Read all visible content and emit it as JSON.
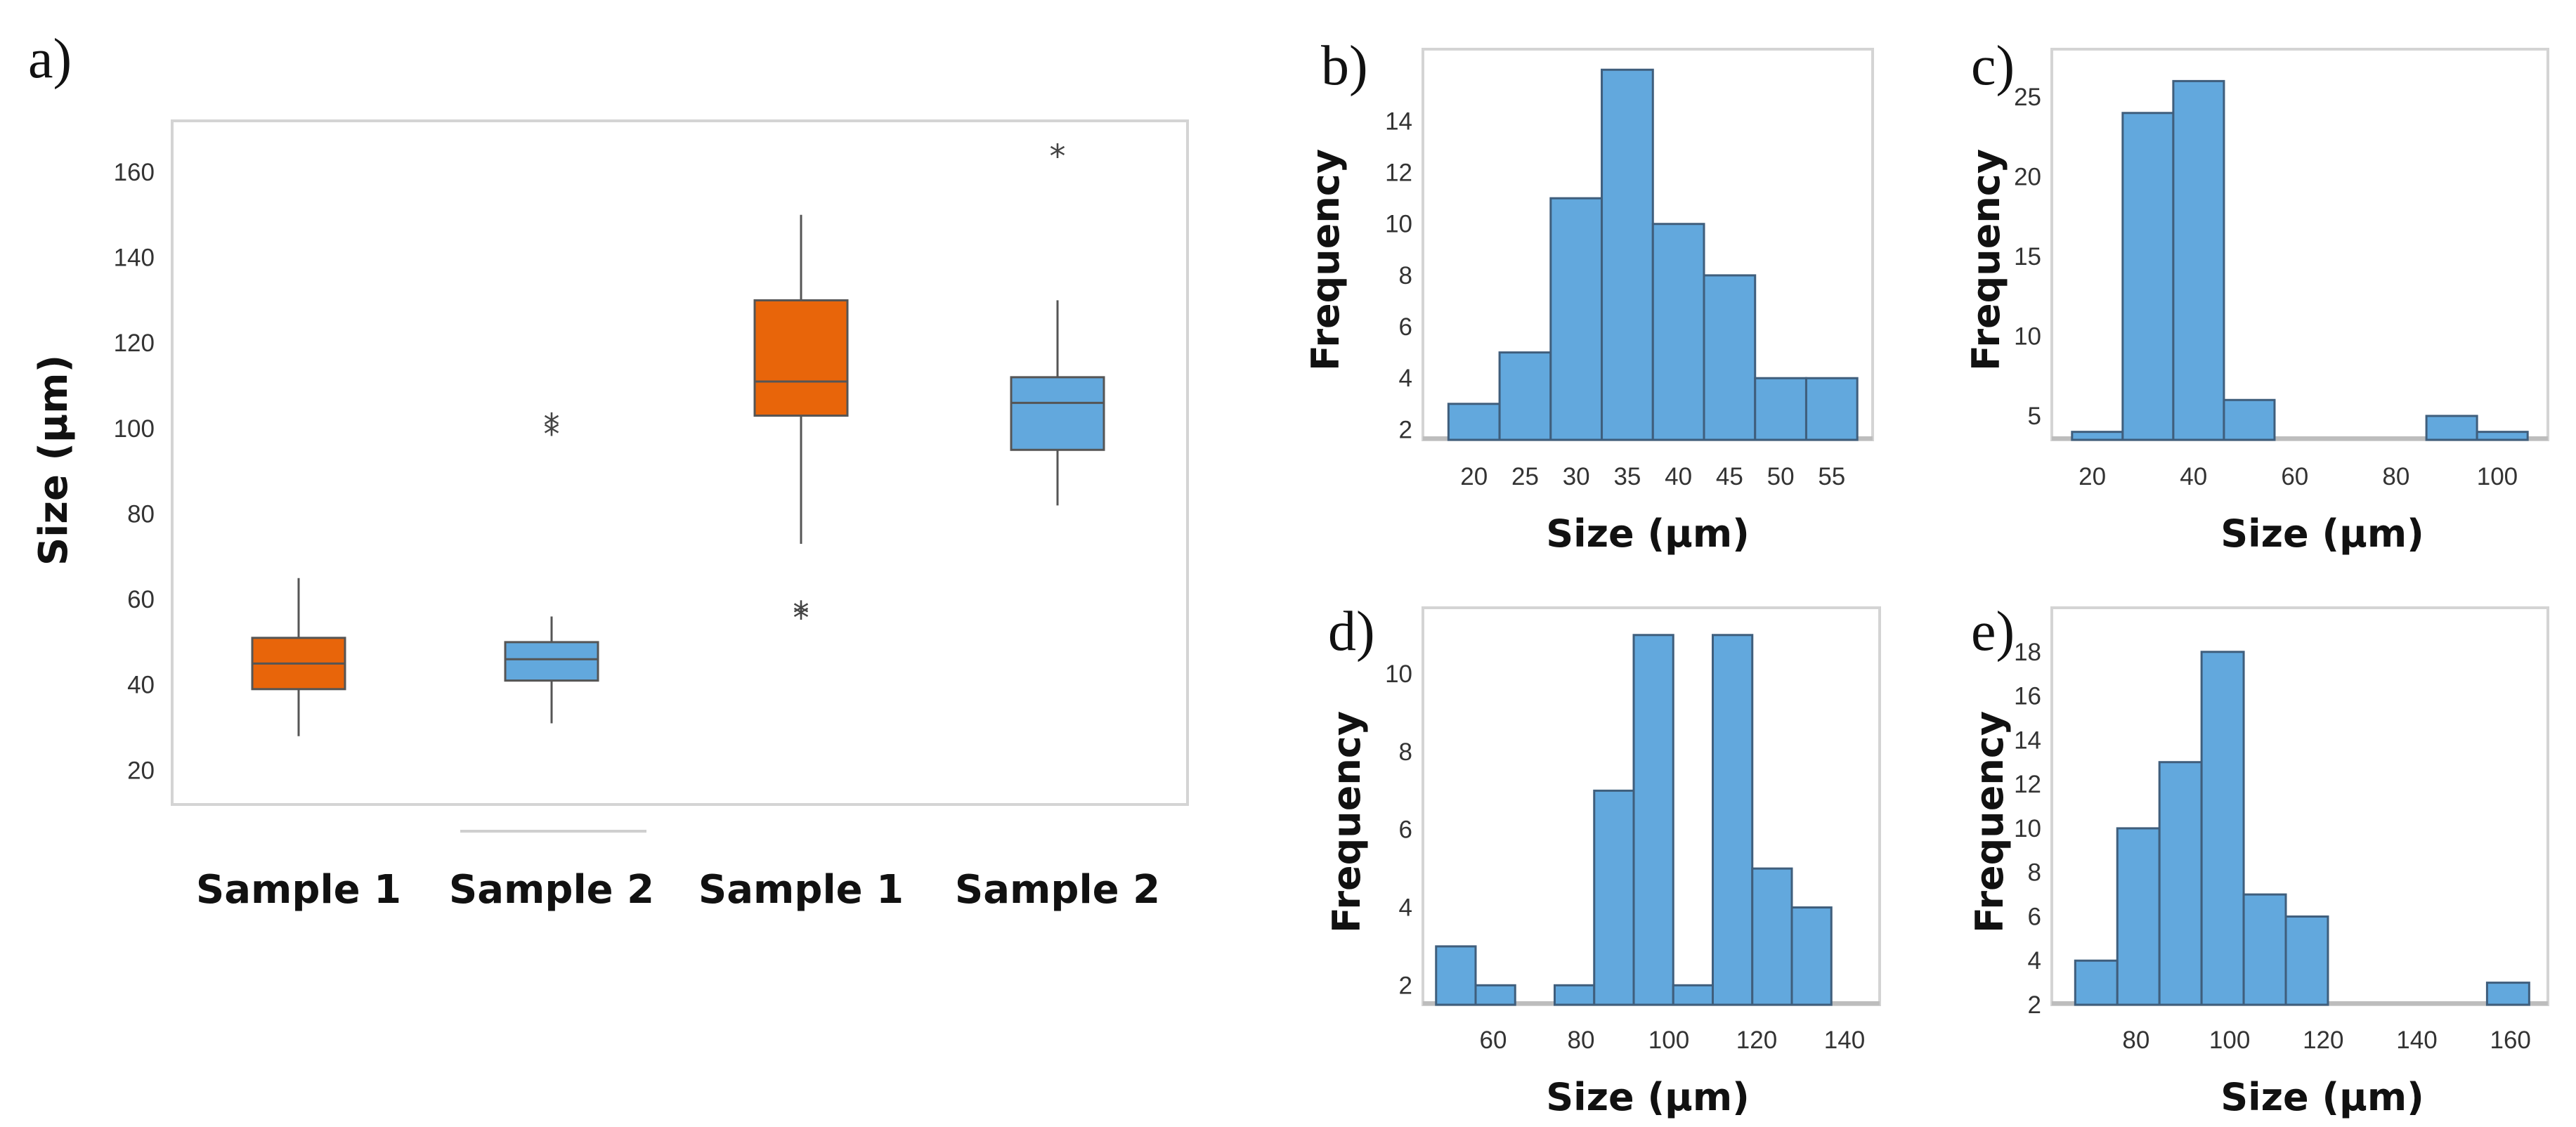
{
  "colors": {
    "orange": "#E8650A",
    "blue": "#62A8DD",
    "bar_stroke": "#3F5E7C",
    "frame": "#D4D4D4",
    "whisker": "#555555"
  },
  "chart_data": [
    {
      "id": "a",
      "panel_label": "a)",
      "type": "box",
      "title": "",
      "xlabel": "",
      "ylabel": "Size (µm)",
      "ylim": [
        12,
        172
      ],
      "yticks": [
        "20",
        "40",
        "60",
        "80",
        "100",
        "120",
        "140",
        "160"
      ],
      "grid": false,
      "categories": [
        "Sample 1",
        "Sample 2",
        "Sample 1",
        "Sample 2"
      ],
      "boxes": [
        {
          "category": "Sample 1",
          "color": "orange",
          "whisker_low": 28,
          "q1": 39,
          "median": 45,
          "q3": 51,
          "whisker_high": 65,
          "outliers": []
        },
        {
          "category": "Sample 2",
          "color": "blue",
          "whisker_low": 31,
          "q1": 41,
          "median": 46,
          "q3": 50,
          "whisker_high": 56,
          "outliers": [
            101,
            103
          ]
        },
        {
          "category": "Sample 1",
          "color": "orange",
          "whisker_low": 73,
          "q1": 103,
          "median": 111,
          "q3": 130,
          "whisker_high": 150,
          "outliers": [
            58,
            59
          ]
        },
        {
          "category": "Sample 2",
          "color": "blue",
          "whisker_low": 82,
          "q1": 95,
          "median": 106,
          "q3": 112,
          "whisker_high": 130,
          "outliers": [
            166
          ]
        }
      ]
    },
    {
      "id": "b",
      "panel_label": "b)",
      "type": "histogram",
      "title": "",
      "xlabel": "Size (µm)",
      "ylabel": "Frequency",
      "xlim": [
        15,
        59
      ],
      "ylim": [
        1.6,
        16.8
      ],
      "xticks": [
        "20",
        "25",
        "30",
        "35",
        "40",
        "45",
        "50",
        "55"
      ],
      "yticks": [
        "2",
        "4",
        "6",
        "8",
        "10",
        "12",
        "14"
      ],
      "grid": false,
      "bins": [
        {
          "x0": 17.5,
          "x1": 22.5,
          "value": 3
        },
        {
          "x0": 22.5,
          "x1": 27.5,
          "value": 5
        },
        {
          "x0": 27.5,
          "x1": 32.5,
          "value": 11
        },
        {
          "x0": 32.5,
          "x1": 37.5,
          "value": 16
        },
        {
          "x0": 37.5,
          "x1": 42.5,
          "value": 10
        },
        {
          "x0": 42.5,
          "x1": 47.5,
          "value": 8
        },
        {
          "x0": 47.5,
          "x1": 52.5,
          "value": 4
        },
        {
          "x0": 52.5,
          "x1": 57.5,
          "value": 4
        }
      ]
    },
    {
      "id": "c",
      "panel_label": "c)",
      "type": "histogram",
      "title": "",
      "xlabel": "Size (µm)",
      "ylabel": "Frequency",
      "xlim": [
        12,
        110
      ],
      "ylim": [
        3.5,
        28
      ],
      "xticks": [
        "20",
        "40",
        "60",
        "80",
        "100"
      ],
      "yticks": [
        "5",
        "10",
        "15",
        "20",
        "25"
      ],
      "grid": false,
      "bins": [
        {
          "x0": 16,
          "x1": 26,
          "value": 4
        },
        {
          "x0": 26,
          "x1": 36,
          "value": 24
        },
        {
          "x0": 36,
          "x1": 46,
          "value": 26
        },
        {
          "x0": 46,
          "x1": 56,
          "value": 6
        },
        {
          "x0": 86,
          "x1": 96,
          "value": 5
        },
        {
          "x0": 96,
          "x1": 106,
          "value": 4
        }
      ]
    },
    {
      "id": "d",
      "panel_label": "d)",
      "type": "histogram",
      "title": "",
      "xlabel": "Size (µm)",
      "ylabel": "Frequency",
      "xlim": [
        44,
        148
      ],
      "ylim": [
        1.5,
        11.7
      ],
      "xticks": [
        "60",
        "80",
        "100",
        "120",
        "140"
      ],
      "yticks": [
        "2",
        "4",
        "6",
        "8",
        "10"
      ],
      "grid": false,
      "bins": [
        {
          "x0": 47,
          "x1": 56,
          "value": 3
        },
        {
          "x0": 56,
          "x1": 65,
          "value": 2
        },
        {
          "x0": 74,
          "x1": 83,
          "value": 2
        },
        {
          "x0": 83,
          "x1": 92,
          "value": 7
        },
        {
          "x0": 92,
          "x1": 101,
          "value": 11
        },
        {
          "x0": 101,
          "x1": 110,
          "value": 2
        },
        {
          "x0": 110,
          "x1": 119,
          "value": 11
        },
        {
          "x0": 119,
          "x1": 128,
          "value": 5
        },
        {
          "x0": 128,
          "x1": 137,
          "value": 4
        }
      ]
    },
    {
      "id": "e",
      "panel_label": "e)",
      "type": "histogram",
      "title": "",
      "xlabel": "Size (µm)",
      "ylabel": "Frequency",
      "xlim": [
        62,
        168
      ],
      "ylim": [
        2,
        20
      ],
      "xticks": [
        "80",
        "100",
        "120",
        "140",
        "160"
      ],
      "yticks": [
        "2",
        "4",
        "6",
        "8",
        "10",
        "12",
        "14",
        "16",
        "18"
      ],
      "grid": false,
      "bins": [
        {
          "x0": 67,
          "x1": 76,
          "value": 4
        },
        {
          "x0": 76,
          "x1": 85,
          "value": 10
        },
        {
          "x0": 85,
          "x1": 94,
          "value": 13
        },
        {
          "x0": 94,
          "x1": 103,
          "value": 18
        },
        {
          "x0": 103,
          "x1": 112,
          "value": 7
        },
        {
          "x0": 112,
          "x1": 121,
          "value": 6
        },
        {
          "x0": 155,
          "x1": 164,
          "value": 3
        }
      ]
    }
  ]
}
